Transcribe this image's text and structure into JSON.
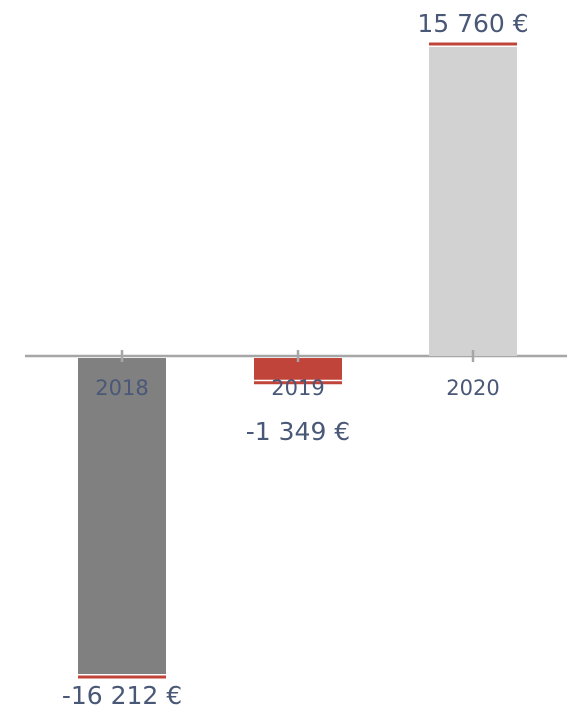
{
  "chart_data": {
    "type": "bar",
    "categories": [
      "2018",
      "2019",
      "2020"
    ],
    "values": [
      -16212,
      -1349,
      15760
    ],
    "value_labels": [
      "-16 212 €",
      "-1 349 €",
      "15 760 €"
    ],
    "colors": [
      "#808080",
      "#c0443a",
      "#d2d2d2"
    ]
  }
}
